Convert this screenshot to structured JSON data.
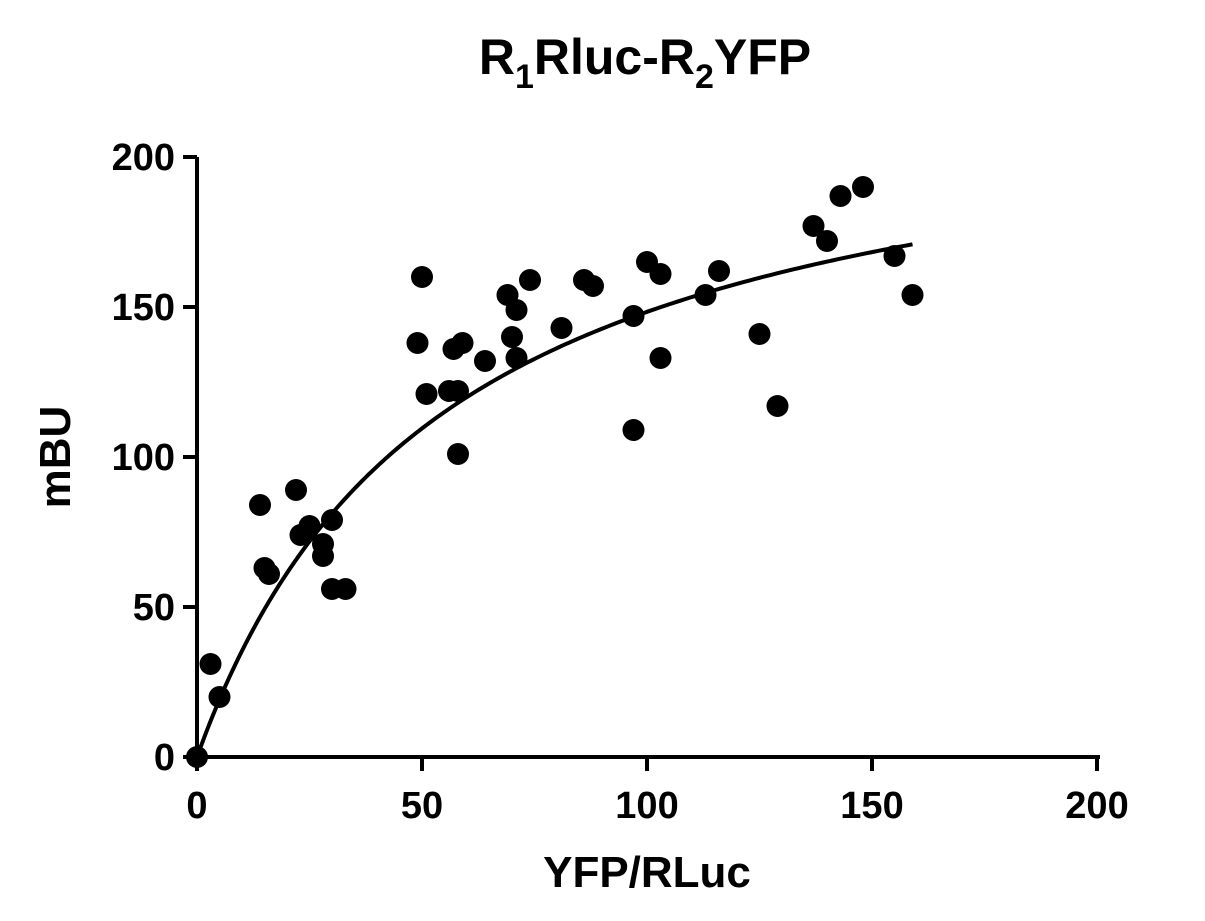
{
  "chart_data": {
    "type": "scatter",
    "title": {
      "parts": [
        {
          "text": "R",
          "sub": false
        },
        {
          "text": "1",
          "sub": true
        },
        {
          "text": "Rluc-R",
          "sub": false
        },
        {
          "text": "2",
          "sub": true
        },
        {
          "text": "YFP",
          "sub": false
        }
      ]
    },
    "xlabel": "YFP/RLuc",
    "ylabel": "mBU",
    "xlim": [
      0,
      200
    ],
    "ylim": [
      0,
      200
    ],
    "x_ticks": [
      0,
      50,
      100,
      150,
      200
    ],
    "y_ticks": [
      0,
      50,
      100,
      150,
      200
    ],
    "grid": false,
    "series": [
      {
        "points": [
          [
            0,
            0
          ],
          [
            3,
            31
          ],
          [
            5,
            20
          ],
          [
            14,
            84
          ],
          [
            15,
            63
          ],
          [
            16,
            61
          ],
          [
            22,
            89
          ],
          [
            23,
            74
          ],
          [
            25,
            77
          ],
          [
            28,
            67
          ],
          [
            28,
            71
          ],
          [
            30,
            79
          ],
          [
            30,
            56
          ],
          [
            33,
            56
          ],
          [
            49,
            138
          ],
          [
            50,
            160
          ],
          [
            51,
            121
          ],
          [
            56,
            122
          ],
          [
            57,
            136
          ],
          [
            58,
            101
          ],
          [
            58,
            122
          ],
          [
            59,
            138
          ],
          [
            64,
            132
          ],
          [
            69,
            154
          ],
          [
            70,
            140
          ],
          [
            71,
            133
          ],
          [
            71,
            149
          ],
          [
            74,
            159
          ],
          [
            81,
            143
          ],
          [
            86,
            159
          ],
          [
            88,
            157
          ],
          [
            97,
            109
          ],
          [
            97,
            147
          ],
          [
            100,
            165
          ],
          [
            103,
            133
          ],
          [
            103,
            161
          ],
          [
            113,
            154
          ],
          [
            116,
            162
          ],
          [
            125,
            141
          ],
          [
            129,
            117
          ],
          [
            137,
            177
          ],
          [
            140,
            172
          ],
          [
            143,
            187
          ],
          [
            148,
            190
          ],
          [
            155,
            167
          ],
          [
            159,
            154
          ]
        ]
      }
    ],
    "fit": {
      "model": "hyperbolic",
      "bmax": 230,
      "kd": 55,
      "x_range": [
        0,
        159
      ]
    }
  }
}
